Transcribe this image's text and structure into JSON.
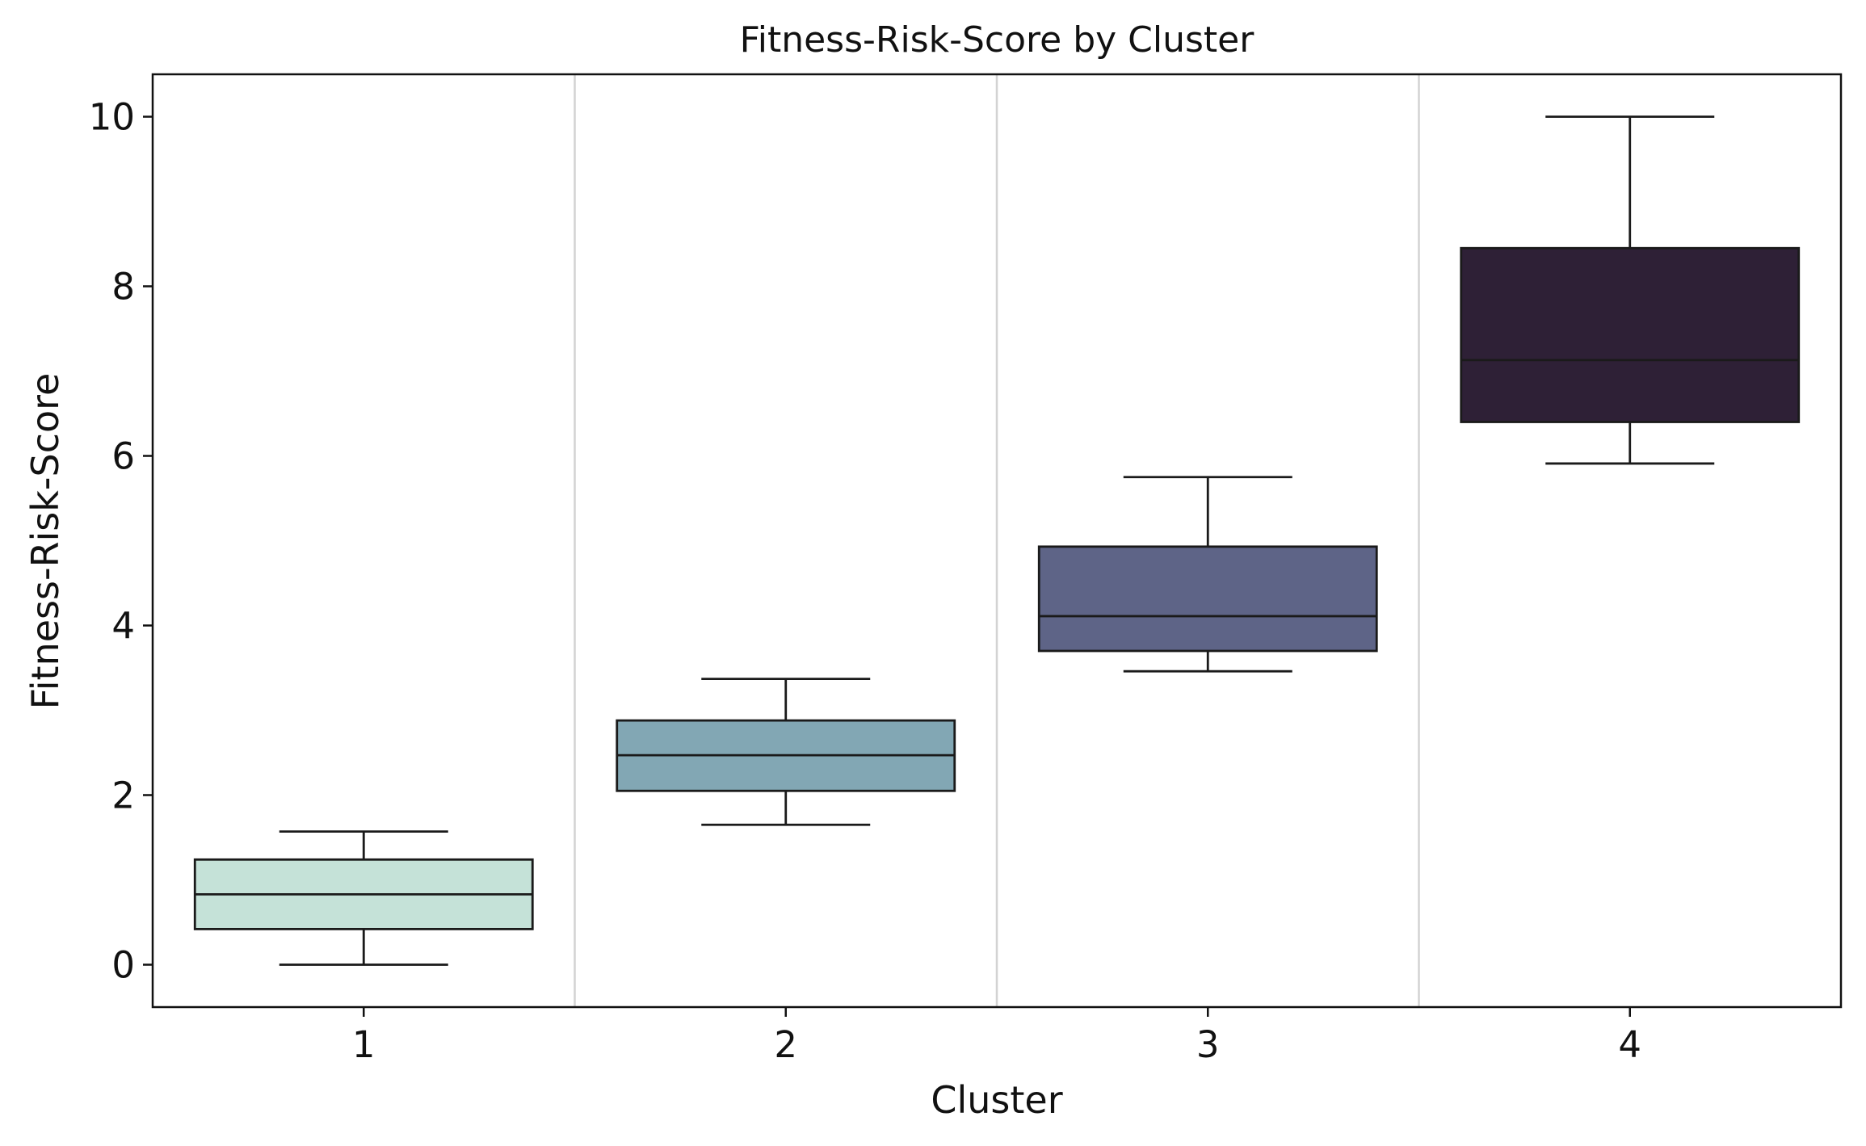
{
  "chart_data": {
    "type": "box",
    "title": "Fitness-Risk-Score by Cluster",
    "xlabel": "Cluster",
    "ylabel": "Fitness-Risk-Score",
    "ylim": [
      -0.5,
      10.5
    ],
    "yticks": [
      0,
      2,
      4,
      6,
      8,
      10
    ],
    "categories": [
      "1",
      "2",
      "3",
      "4"
    ],
    "series": [
      {
        "category": "1",
        "whisker_low": 0.0,
        "q1": 0.42,
        "median": 0.83,
        "q3": 1.24,
        "whisker_high": 1.57,
        "color": "#c5e2d8"
      },
      {
        "category": "2",
        "whisker_low": 1.65,
        "q1": 2.05,
        "median": 2.47,
        "q3": 2.88,
        "whisker_high": 3.37,
        "color": "#82a7b4"
      },
      {
        "category": "3",
        "whisker_low": 3.46,
        "q1": 3.7,
        "median": 4.11,
        "q3": 4.93,
        "whisker_high": 5.75,
        "color": "#5e6487"
      },
      {
        "category": "4",
        "whisker_low": 5.91,
        "q1": 6.4,
        "median": 7.13,
        "q3": 8.45,
        "whisker_high": 10.0,
        "color": "#2e2036"
      }
    ],
    "vertical_grid": true,
    "legend": "none"
  }
}
